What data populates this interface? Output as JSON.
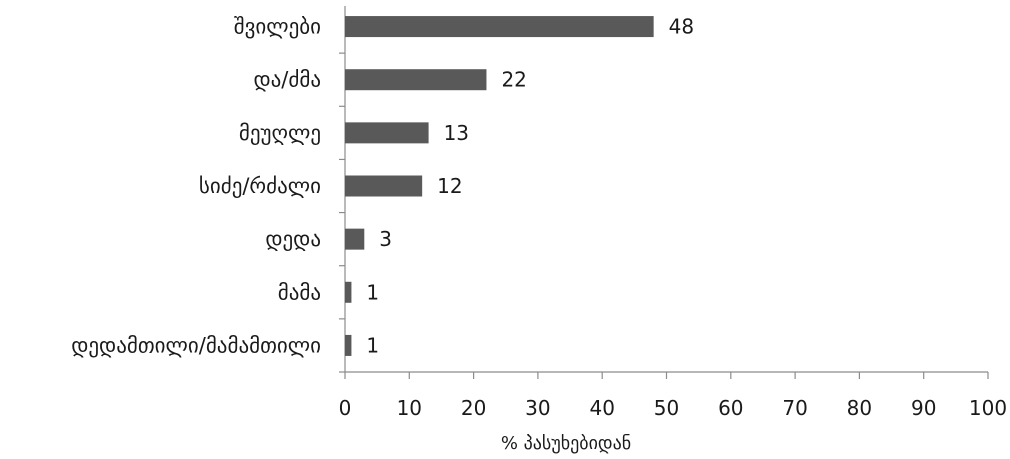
{
  "chart_data": {
    "type": "bar",
    "orientation": "horizontal",
    "categories": [
      "შვილები",
      "და/ძმა",
      "მეუღლე",
      "სიძე/რძალი",
      "დედა",
      "მამა",
      "დედამთილი/მამამთილი"
    ],
    "values": [
      48,
      22,
      13,
      12,
      3,
      1,
      1
    ],
    "data_labels": [
      "48",
      "22",
      "13",
      "12",
      "3",
      "1",
      "1"
    ],
    "xlabel": "% პასუხებიდან",
    "ylabel": "",
    "xlim": [
      0,
      100
    ],
    "xticks": [
      0,
      10,
      20,
      30,
      40,
      50,
      60,
      70,
      80,
      90,
      100
    ],
    "xtick_labels": [
      "0",
      "10",
      "20",
      "30",
      "40",
      "50",
      "60",
      "70",
      "80",
      "90",
      "100"
    ],
    "grid": false,
    "legend": "none",
    "colors": {
      "bar": "#595959",
      "axis": "#8c8c8c",
      "text": "#1a1a1a"
    }
  }
}
